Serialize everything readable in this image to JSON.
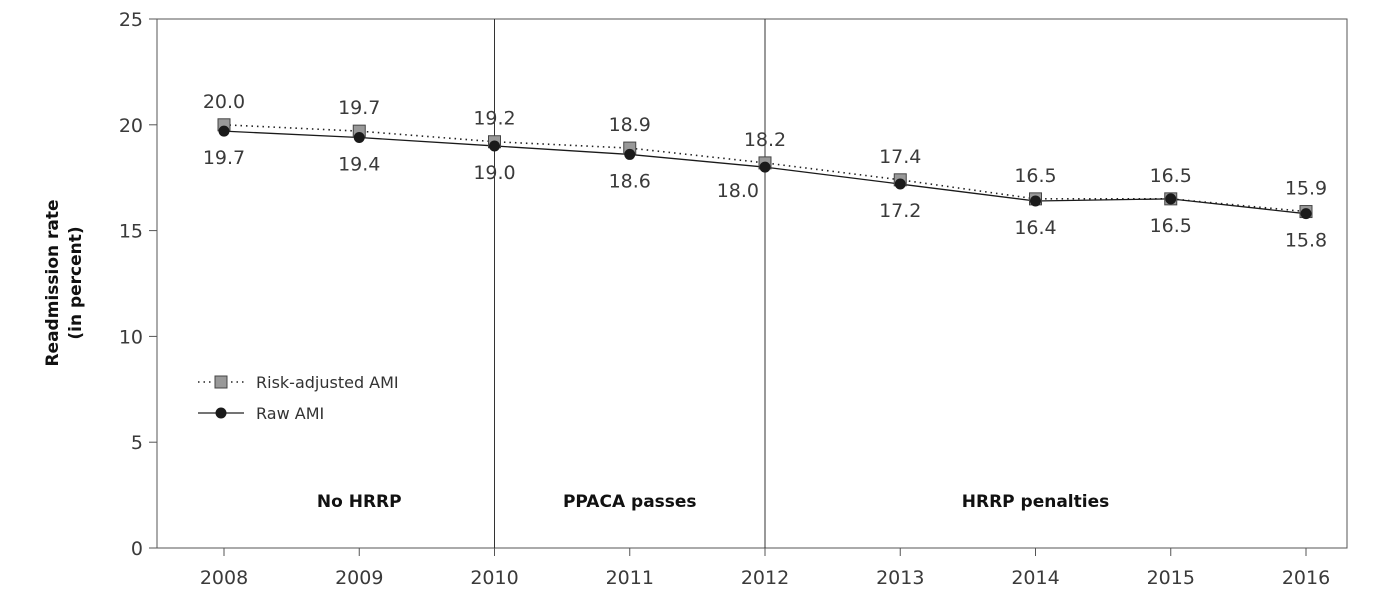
{
  "chart_data": {
    "type": "line",
    "ylabel_line1": "Readmission rate",
    "ylabel_line2": "(in percent)",
    "xlabel": "",
    "categories": [
      "2008",
      "2009",
      "2010",
      "2011",
      "2012",
      "2013",
      "2014",
      "2015",
      "2016"
    ],
    "ylim": [
      0,
      25
    ],
    "yticks": [
      0,
      5,
      10,
      15,
      20,
      25
    ],
    "series": [
      {
        "name": "Risk-adjusted AMI",
        "values": [
          20.0,
          19.7,
          19.2,
          18.9,
          18.2,
          17.4,
          16.5,
          16.5,
          15.9
        ],
        "labels": [
          "20.0",
          "19.7",
          "19.2",
          "18.9",
          "18.2",
          "17.4",
          "16.5",
          "16.5",
          "15.9"
        ],
        "line_style": "dotted",
        "marker": "square",
        "color": "#999999"
      },
      {
        "name": "Raw AMI",
        "values": [
          19.7,
          19.4,
          19.0,
          18.6,
          18.0,
          17.2,
          16.4,
          16.5,
          15.8
        ],
        "labels": [
          "19.7",
          "19.4",
          "19.0",
          "18.6",
          "18.0",
          "17.2",
          "16.4",
          "16.5",
          "15.8"
        ],
        "line_style": "solid",
        "marker": "circle",
        "color": "#1a1a1a"
      }
    ],
    "periods": [
      {
        "label": "No HRRP",
        "from": "2008",
        "to": "2010"
      },
      {
        "label": "PPACA passes",
        "from": "2010",
        "to": "2012"
      },
      {
        "label": "HRRP penalties",
        "from": "2012",
        "to": "2016"
      }
    ],
    "dividers": [
      "2010",
      "2012"
    ],
    "legend_position": "lower-left",
    "grid": false
  }
}
